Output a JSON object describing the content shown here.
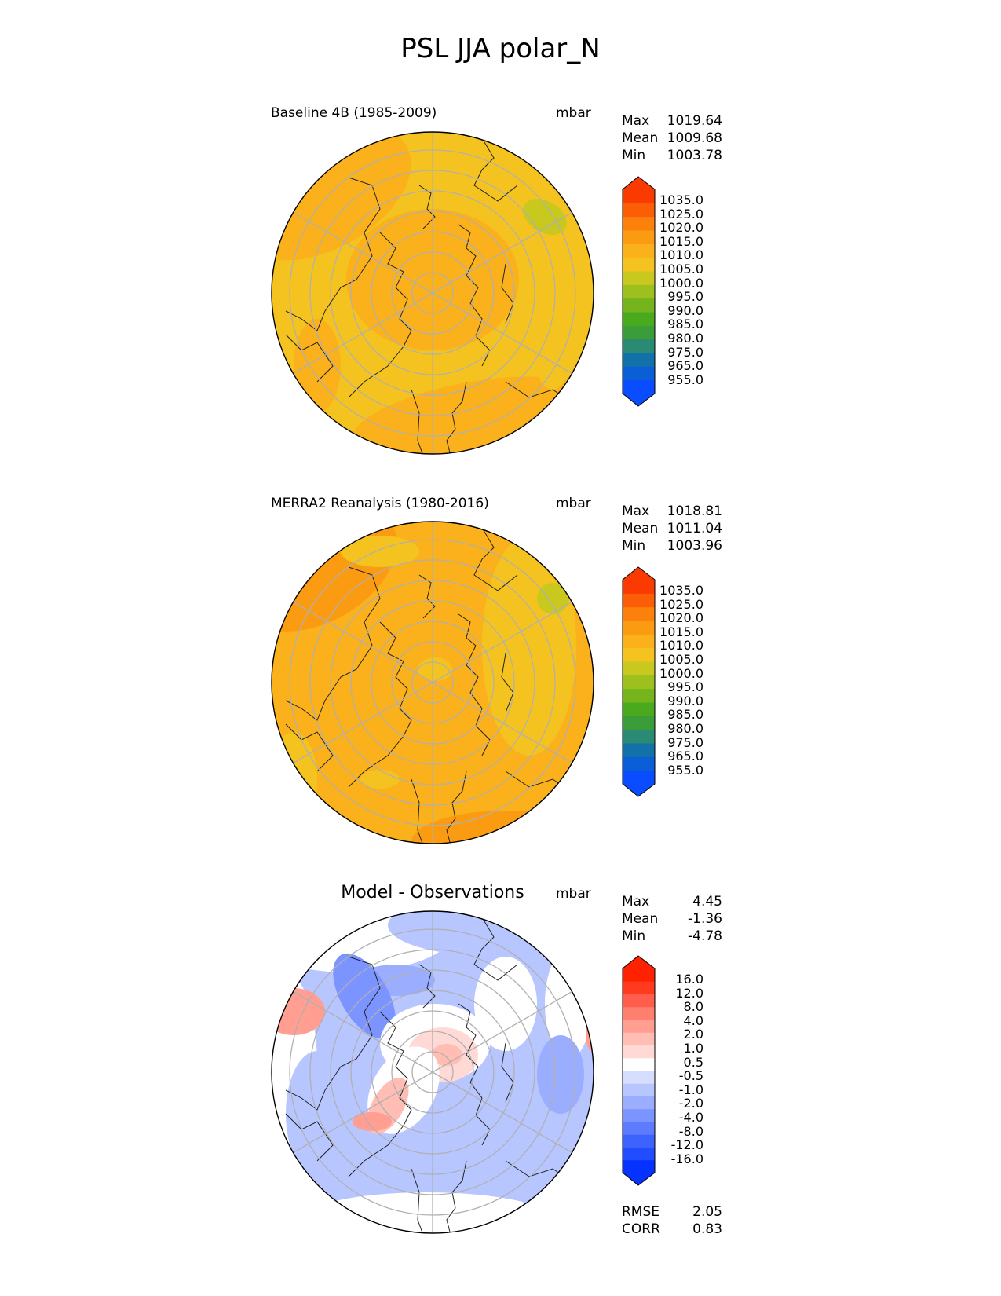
{
  "figure_title": "PSL JJA polar_N",
  "colors": {
    "psl_levels": [
      "#0a4cff",
      "#0a5fd6",
      "#1271a8",
      "#2b8a73",
      "#3b9c3a",
      "#4aaa1e",
      "#76b41e",
      "#9ec01e",
      "#c8c81e",
      "#f5c31f",
      "#fbb11b",
      "#fb9b12",
      "#fb800c",
      "#fb5e07",
      "#fb3a02"
    ],
    "diff_levels": [
      "#0532ff",
      "#1f4dff",
      "#3d63ff",
      "#5c7bff",
      "#7b94ff",
      "#9aadff",
      "#b7c6ff",
      "#d6deff",
      "#ffffff",
      "#ffd9d5",
      "#ffbdb3",
      "#ff9e91",
      "#ff7f6f",
      "#ff5e4d",
      "#ff3a1f",
      "#ff2200"
    ],
    "grid": "#b0b0b0",
    "coast": "#222222"
  },
  "panels": [
    {
      "left_title": "Baseline 4B (1985-2009)",
      "units": "mbar",
      "stats": {
        "max_label": "Max",
        "max": "1019.64",
        "mean_label": "Mean",
        "mean": "1009.68",
        "min_label": "Min",
        "min": "1003.78"
      },
      "colorbar_ticks": [
        "1035.0",
        "1025.0",
        "1020.0",
        "1015.0",
        "1010.0",
        "1005.0",
        "1000.0",
        "995.0",
        "990.0",
        "985.0",
        "980.0",
        "975.0",
        "965.0",
        "955.0"
      ]
    },
    {
      "left_title": "MERRA2 Reanalysis (1980-2016)",
      "units": "mbar",
      "stats": {
        "max_label": "Max",
        "max": "1018.81",
        "mean_label": "Mean",
        "mean": "1011.04",
        "min_label": "Min",
        "min": "1003.96"
      },
      "colorbar_ticks": [
        "1035.0",
        "1025.0",
        "1020.0",
        "1015.0",
        "1010.0",
        "1005.0",
        "1000.0",
        "995.0",
        "990.0",
        "985.0",
        "980.0",
        "975.0",
        "965.0",
        "955.0"
      ]
    },
    {
      "center_title": "Model - Observations",
      "units": "mbar",
      "stats": {
        "max_label": "Max",
        "max": "4.45",
        "mean_label": "Mean",
        "mean": "-1.36",
        "min_label": "Min",
        "min": "-4.78"
      },
      "colorbar_ticks": [
        "16.0",
        "12.0",
        "8.0",
        "4.0",
        "2.0",
        "1.0",
        "0.5",
        "-0.5",
        "-1.0",
        "-2.0",
        "-4.0",
        "-8.0",
        "-12.0",
        "-16.0"
      ],
      "metrics": {
        "rmse_label": "RMSE",
        "rmse": "2.05",
        "corr_label": "CORR",
        "corr": "0.83"
      }
    }
  ],
  "chart_data": {
    "type": "heatmap",
    "title": "PSL JJA polar_N",
    "projection": "north polar stereographic",
    "variable": "PSL",
    "units": "mbar",
    "panels": [
      {
        "name": "Baseline 4B (1985-2009)",
        "max": 1019.64,
        "mean": 1009.68,
        "min": 1003.78,
        "contour_levels": [
          955,
          965,
          975,
          980,
          985,
          990,
          995,
          1000,
          1005,
          1010,
          1015,
          1020,
          1025,
          1035
        ]
      },
      {
        "name": "MERRA2 Reanalysis (1980-2016)",
        "max": 1018.81,
        "mean": 1011.04,
        "min": 1003.96,
        "contour_levels": [
          955,
          965,
          975,
          980,
          985,
          990,
          995,
          1000,
          1005,
          1010,
          1015,
          1020,
          1025,
          1035
        ]
      },
      {
        "name": "Model - Observations",
        "max": 4.45,
        "mean": -1.36,
        "min": -4.78,
        "contour_levels": [
          -16,
          -12,
          -8,
          -4,
          -2,
          -1,
          -0.5,
          0.5,
          1,
          2,
          4,
          8,
          12,
          16
        ],
        "rmse": 2.05,
        "corr": 0.83
      }
    ]
  }
}
